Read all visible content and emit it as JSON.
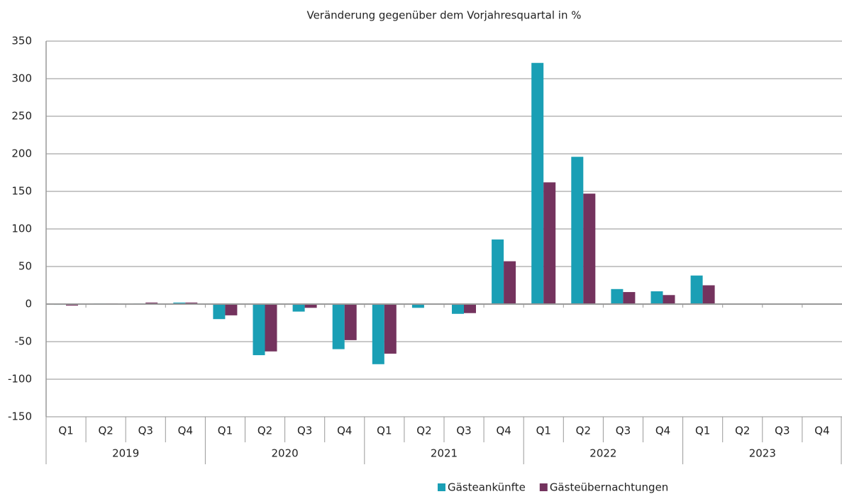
{
  "chart_data": {
    "type": "bar",
    "title": "Veränderung gegenüber dem Vorjahresquartal in %",
    "categories": [
      "Q1",
      "Q2",
      "Q3",
      "Q4",
      "Q1",
      "Q2",
      "Q3",
      "Q4",
      "Q1",
      "Q2",
      "Q3",
      "Q4",
      "Q1",
      "Q2",
      "Q3",
      "Q4",
      "Q1",
      "Q2",
      "Q3",
      "Q4"
    ],
    "category_groups": [
      "2019",
      "2020",
      "2021",
      "2022",
      "2023"
    ],
    "series": [
      {
        "name": "Gästeankünfte",
        "color": "#1a9fb5",
        "values": [
          -1,
          1,
          1,
          2,
          -20,
          -68,
          -10,
          -60,
          -80,
          -5,
          -13,
          86,
          321,
          196,
          20,
          17,
          38,
          null,
          null,
          null
        ]
      },
      {
        "name": "Gästeübernachtungen",
        "color": "#74335e",
        "values": [
          -2,
          1,
          2,
          2,
          -15,
          -63,
          -5,
          -48,
          -66,
          0,
          -12,
          57,
          162,
          147,
          16,
          12,
          25,
          null,
          null,
          null
        ]
      }
    ],
    "ylim": [
      -150,
      350
    ],
    "yticks": [
      -150,
      -100,
      -50,
      0,
      50,
      100,
      150,
      200,
      250,
      300,
      350
    ],
    "grid": true,
    "legend": "bottom"
  }
}
